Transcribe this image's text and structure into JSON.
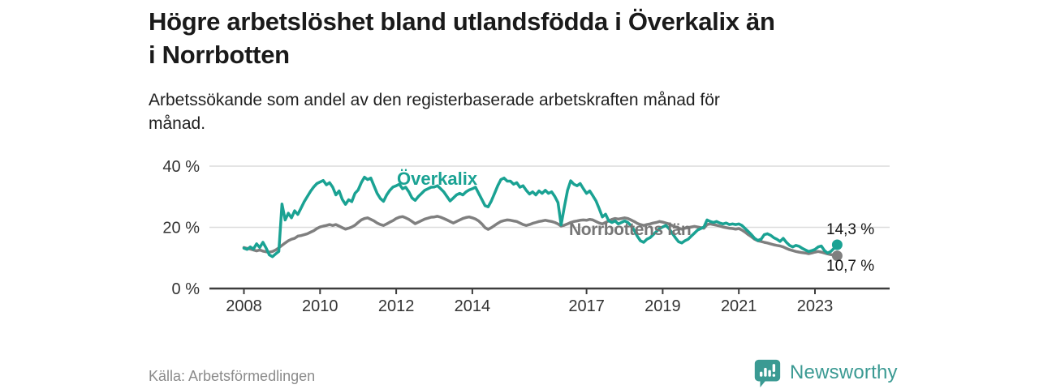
{
  "header": {
    "title_line1": "Högre arbetslöshet bland utlandsfödda i Överkalix än",
    "title_line2": "i Norrbotten",
    "subtitle_line1": "Arbetssökande som andel av den registerbaserade arbetskraften månad för",
    "subtitle_line2": "månad."
  },
  "footer": {
    "source": "Källa: Arbetsförmedlingen",
    "brand": "Newsworthy"
  },
  "colors": {
    "accent_teal": "#1aa293",
    "line_gray": "#7f7f7f",
    "brand_teal": "#3b9a93",
    "gridline": "#dcdcdc",
    "axis": "#3d3d3d"
  },
  "chart_data": {
    "type": "line",
    "title": "Högre arbetslöshet bland utlandsfödda i Överkalix än i Norrbotten",
    "subtitle": "Arbetssökande som andel av den registerbaserade arbetskraften månad för månad.",
    "unit": "%",
    "frequency": "monthly",
    "start": "2008-01",
    "end": "2023-08",
    "grid": "horizontal",
    "legend_position": "inline-labels",
    "x_ticks": [
      2008,
      2010,
      2012,
      2014,
      2017,
      2019,
      2021,
      2023
    ],
    "y_ticks": [
      {
        "value": 0,
        "label": "0 %"
      },
      {
        "value": 20,
        "label": "20 %"
      },
      {
        "value": 40,
        "label": "40 %"
      }
    ],
    "ylim": [
      0,
      42
    ],
    "series": [
      {
        "name": "Överkalix",
        "color": "#1aa293",
        "end_value": 14.3,
        "end_label": "14,3 %",
        "values": [
          13.2,
          12.8,
          13.6,
          12.9,
          14.6,
          13.4,
          15.1,
          13.2,
          11.0,
          10.4,
          11.3,
          12.1,
          27.6,
          22.4,
          24.6,
          23.1,
          25.4,
          24.2,
          26.3,
          28.4,
          30.1,
          31.8,
          33.2,
          34.3,
          34.8,
          35.3,
          33.9,
          34.6,
          33.1,
          30.6,
          31.9,
          29.1,
          27.5,
          29.0,
          28.4,
          31.1,
          32.2,
          34.6,
          36.4,
          35.6,
          36.1,
          33.6,
          31.1,
          29.4,
          28.5,
          30.6,
          32.1,
          33.2,
          33.6,
          34.1,
          32.6,
          33.1,
          31.6,
          29.6,
          28.8,
          30.1,
          31.1,
          32.1,
          32.6,
          33.1,
          33.2,
          33.6,
          32.6,
          31.6,
          30.1,
          28.6,
          29.6,
          30.6,
          31.1,
          30.6,
          31.6,
          32.2,
          32.6,
          33.1,
          31.1,
          29.1,
          27.1,
          26.7,
          28.6,
          31.1,
          33.6,
          35.6,
          36.1,
          35.1,
          35.1,
          34.1,
          34.6,
          33.1,
          33.6,
          32.1,
          30.9,
          31.6,
          30.6,
          31.9,
          31.1,
          32.1,
          31.1,
          31.6,
          30.1,
          28.1,
          20.8,
          26.6,
          32.1,
          35.2,
          34.1,
          33.6,
          34.3,
          32.6,
          31.1,
          31.9,
          30.3,
          28.6,
          26.1,
          23.4,
          24.3,
          22.1,
          21.6,
          22.1,
          21.1,
          21.6,
          22.1,
          21.6,
          20.6,
          19.1,
          17.1,
          15.6,
          15.1,
          16.1,
          16.6,
          17.6,
          18.6,
          19.6,
          20.1,
          20.6,
          19.6,
          18.1,
          16.6,
          15.3,
          14.9,
          15.6,
          16.1,
          17.1,
          18.1,
          19.1,
          19.6,
          20.1,
          22.4,
          21.9,
          21.6,
          21.9,
          21.4,
          21.1,
          21.4,
          20.9,
          21.1,
          20.9,
          21.1,
          20.6,
          19.6,
          18.6,
          17.6,
          16.4,
          15.7,
          16.1,
          17.6,
          17.9,
          17.4,
          16.6,
          16.1,
          15.4,
          16.4,
          15.1,
          14.1,
          13.6,
          14.1,
          13.8,
          13.1,
          12.6,
          12.1,
          12.4,
          12.8,
          13.6,
          13.9,
          12.4,
          11.6,
          12.1,
          13.1,
          14.3
        ]
      },
      {
        "name": "Norrbottens län",
        "color": "#7f7f7f",
        "end_value": 10.7,
        "end_label": "10,7 %",
        "values": [
          13.4,
          13.1,
          12.9,
          12.6,
          12.3,
          12.6,
          12.2,
          12.0,
          11.9,
          12.1,
          12.6,
          13.3,
          14.1,
          14.9,
          15.6,
          16.1,
          16.4,
          17.1,
          17.3,
          17.6,
          17.9,
          18.4,
          18.9,
          19.6,
          20.1,
          20.4,
          20.6,
          20.9,
          20.6,
          20.9,
          20.4,
          19.9,
          19.4,
          19.7,
          20.1,
          20.7,
          21.6,
          22.4,
          22.9,
          23.1,
          22.6,
          22.1,
          21.4,
          20.9,
          20.6,
          21.1,
          21.7,
          22.2,
          22.9,
          23.3,
          23.5,
          23.1,
          22.6,
          21.9,
          21.2,
          21.7,
          22.2,
          22.7,
          23.0,
          23.3,
          23.4,
          23.6,
          23.3,
          22.9,
          22.4,
          21.9,
          21.4,
          21.9,
          22.4,
          22.9,
          23.2,
          23.4,
          23.1,
          22.7,
          22.1,
          21.1,
          19.9,
          19.3,
          19.9,
          20.6,
          21.3,
          21.9,
          22.2,
          22.4,
          22.3,
          22.1,
          21.9,
          21.4,
          20.9,
          20.6,
          20.9,
          21.3,
          21.6,
          21.9,
          22.1,
          22.3,
          22.1,
          21.9,
          21.6,
          21.1,
          20.4,
          20.7,
          21.1,
          21.6,
          21.9,
          22.1,
          22.3,
          22.4,
          22.3,
          22.6,
          22.4,
          21.9,
          21.4,
          21.1,
          21.6,
          22.1,
          22.6,
          22.9,
          22.7,
          22.9,
          23.1,
          22.9,
          22.4,
          21.9,
          21.3,
          20.9,
          20.6,
          20.9,
          21.1,
          21.4,
          21.6,
          21.9,
          21.7,
          21.4,
          21.1,
          20.6,
          20.1,
          19.7,
          19.4,
          19.7,
          19.9,
          20.1,
          20.3,
          20.1,
          19.9,
          19.7,
          20.9,
          21.1,
          20.9,
          20.7,
          20.4,
          20.1,
          19.9,
          19.7,
          19.6,
          19.4,
          19.6,
          19.1,
          18.4,
          17.6,
          16.9,
          16.1,
          15.6,
          15.4,
          15.1,
          14.9,
          14.6,
          14.3,
          14.1,
          13.9,
          13.6,
          13.1,
          12.7,
          12.4,
          12.1,
          11.9,
          11.7,
          11.6,
          11.4,
          11.6,
          11.9,
          12.1,
          11.9,
          11.6,
          11.3,
          11.1,
          10.9,
          10.7
        ]
      }
    ]
  }
}
